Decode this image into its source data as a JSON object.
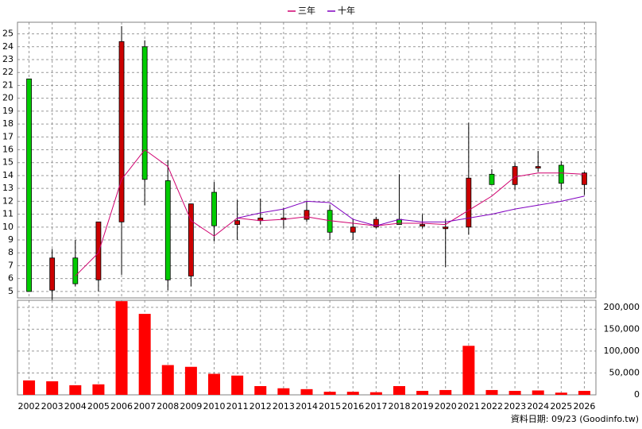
{
  "chart_data": [
    {
      "type": "candlestick",
      "categories": [
        "2002",
        "2003",
        "2004",
        "2005",
        "2006",
        "2007",
        "2008",
        "2009",
        "2010",
        "2011",
        "2012",
        "2013",
        "2014",
        "2015",
        "2016",
        "2017",
        "2018",
        "2019",
        "2020",
        "2021",
        "2022",
        "2023",
        "2024",
        "2025",
        "2026"
      ],
      "open": [
        21.5,
        5.1,
        7.6,
        5.9,
        10.4,
        24.0,
        13.6,
        6.2,
        12.7,
        10.2,
        10.5,
        10.6,
        10.6,
        11.3,
        9.6,
        10.0,
        10.6,
        10.2,
        10.0,
        10.0,
        14.1,
        13.3,
        14.7,
        14.8,
        13.3
      ],
      "high": [
        21.5,
        8.3,
        9.0,
        10.4,
        25.6,
        24.5,
        15.2,
        11.8,
        13.5,
        12.1,
        12.2,
        11.5,
        12.0,
        11.7,
        10.6,
        10.8,
        14.1,
        11.0,
        10.6,
        18.1,
        14.5,
        15.0,
        15.9,
        15.1,
        14.3
      ],
      "low": [
        5.0,
        4.3,
        5.4,
        5.0,
        6.3,
        11.7,
        5.1,
        5.4,
        8.9,
        9.0,
        10.2,
        9.9,
        10.4,
        9.0,
        9.0,
        9.9,
        10.2,
        9.9,
        6.9,
        9.4,
        13.3,
        12.9,
        14.3,
        12.9,
        12.5
      ],
      "close": [
        5.0,
        7.6,
        5.6,
        10.4,
        24.4,
        13.7,
        5.9,
        11.8,
        10.1,
        10.5,
        10.7,
        10.7,
        11.3,
        9.6,
        10.0,
        10.6,
        10.2,
        10.2,
        10.0,
        13.8,
        13.3,
        14.7,
        14.7,
        13.4,
        14.2
      ],
      "up_color": "#cc0000",
      "down_color": "#00cc00",
      "series": [
        {
          "name": "三年",
          "color": "#d0006f",
          "values": [
            null,
            null,
            6.2,
            8.0,
            13.7,
            16.0,
            14.7,
            10.5,
            9.3,
            10.7,
            10.5,
            10.6,
            10.8,
            10.5,
            10.3,
            10.1,
            10.3,
            10.3,
            10.2,
            11.3,
            12.4,
            13.9,
            14.2,
            14.2,
            14.1
          ]
        },
        {
          "name": "十年",
          "color": "#8000c0",
          "values": [
            null,
            null,
            null,
            null,
            null,
            null,
            null,
            null,
            null,
            10.7,
            11.1,
            11.4,
            12.0,
            11.9,
            10.6,
            10.1,
            10.6,
            10.4,
            10.4,
            10.7,
            11.0,
            11.4,
            11.7,
            12.0,
            12.4
          ]
        }
      ],
      "ylim": [
        4.5,
        25.9
      ],
      "yticks": [
        5,
        6,
        7,
        8,
        9,
        10,
        11,
        12,
        13,
        14,
        15,
        16,
        17,
        18,
        19,
        20,
        21,
        22,
        23,
        24,
        25
      ],
      "grid": true,
      "legend": "top"
    },
    {
      "type": "bar",
      "values": [
        33000,
        31000,
        22000,
        24000,
        214000,
        185000,
        68000,
        64000,
        48000,
        44000,
        20000,
        15000,
        13000,
        7000,
        7000,
        6000,
        20000,
        9000,
        11000,
        112000,
        11000,
        9000,
        10000,
        5000,
        9000
      ],
      "color": "#ff0000",
      "ylim": [
        0,
        216000
      ],
      "yticks": [
        {
          "value": 0,
          "label": "0"
        },
        {
          "value": 50000,
          "label": "50,000"
        },
        {
          "value": 100000,
          "label": "100,000"
        },
        {
          "value": 150000,
          "label": "150,000"
        },
        {
          "value": 200000,
          "label": "200,000"
        }
      ],
      "grid": true
    }
  ],
  "footer": "資料日期: 09/23  (Goodinfo.tw)"
}
